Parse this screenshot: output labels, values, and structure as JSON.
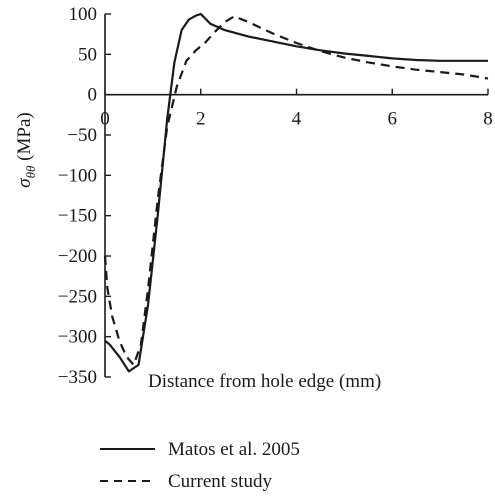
{
  "chart_data": {
    "type": "line",
    "title": "",
    "xlabel": "Distance from hole edge (mm)",
    "ylabel": {
      "symbol": "σ",
      "subscript": "θθ",
      "unit": "(MPa)"
    },
    "xlim": [
      0,
      8
    ],
    "ylim": [
      -350,
      100
    ],
    "xticks": [
      0,
      2,
      4,
      6,
      8
    ],
    "yticks": [
      100,
      50,
      0,
      -50,
      -100,
      -150,
      -200,
      -250,
      -300,
      -350
    ],
    "xtick_labels": [
      "0",
      "2",
      "4",
      "6",
      "8"
    ],
    "ytick_labels": [
      "100",
      "50",
      "0",
      "−50",
      "−100",
      "−150",
      "−200",
      "−250",
      "−300",
      "−350"
    ],
    "grid": false,
    "legend_position": "bottom",
    "series": [
      {
        "name": "Matos et al. 2005",
        "style": "solid",
        "color": "#1a1a1a",
        "x": [
          0,
          0.1,
          0.3,
          0.5,
          0.7,
          0.9,
          1.1,
          1.3,
          1.45,
          1.6,
          1.75,
          1.9,
          2.0,
          2.2,
          2.5,
          3.0,
          3.5,
          4.0,
          4.5,
          5.0,
          5.5,
          6.0,
          6.5,
          7.0,
          7.5,
          8.0
        ],
        "y": [
          -305,
          -310,
          -325,
          -343,
          -335,
          -260,
          -150,
          -30,
          40,
          80,
          93,
          98,
          100,
          88,
          80,
          72,
          66,
          60,
          55,
          51,
          48,
          45,
          43,
          42,
          42,
          42
        ]
      },
      {
        "name": "Current study",
        "style": "dashed",
        "color": "#1a1a1a",
        "x": [
          0,
          0.05,
          0.15,
          0.3,
          0.45,
          0.6,
          0.75,
          0.9,
          1.1,
          1.3,
          1.5,
          1.7,
          1.9,
          2.1,
          2.3,
          2.5,
          2.7,
          3.0,
          3.5,
          4.0,
          4.5,
          5.0,
          5.5,
          6.0,
          6.5,
          7.0,
          7.5,
          8.0
        ],
        "y": [
          -200,
          -240,
          -275,
          -305,
          -325,
          -335,
          -310,
          -240,
          -130,
          -40,
          10,
          42,
          55,
          65,
          78,
          90,
          97,
          90,
          76,
          64,
          54,
          46,
          40,
          35,
          31,
          28,
          25,
          20
        ]
      }
    ]
  }
}
